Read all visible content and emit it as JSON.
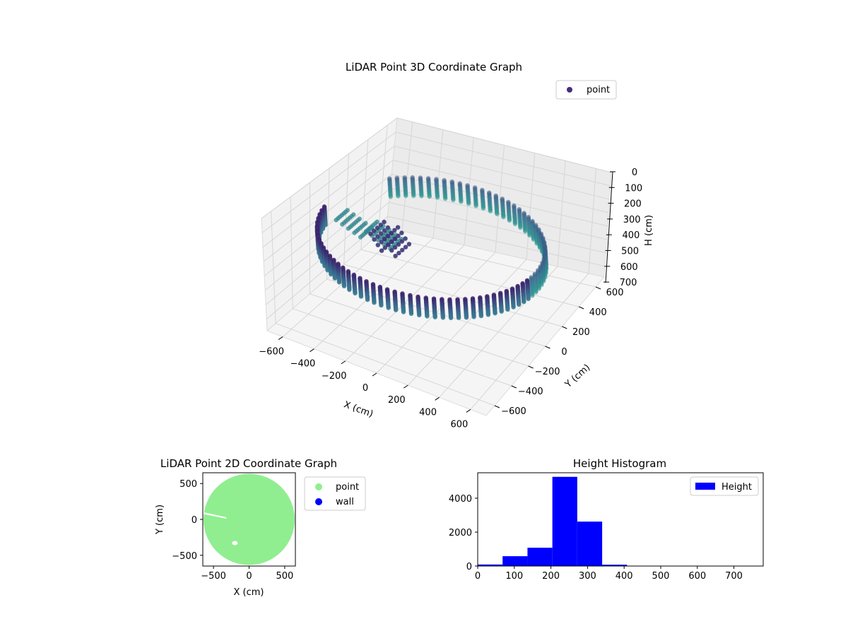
{
  "chart_data": [
    {
      "type": "scatter3d",
      "title": "LiDAR Point 3D Coordinate Graph",
      "xlabel": "X (cm)",
      "ylabel": "Y (cm)",
      "zlabel": "H (cm)",
      "xlim": [
        -700,
        700
      ],
      "ylim": [
        -700,
        700
      ],
      "zlim": [
        0,
        780
      ],
      "z_inverted": true,
      "x_ticks": [
        -600,
        -400,
        -200,
        0,
        200,
        400,
        600
      ],
      "y_ticks": [
        -600,
        -400,
        -200,
        0,
        200,
        400,
        600
      ],
      "z_ticks": [
        0,
        100,
        200,
        300,
        400,
        500,
        600,
        700
      ],
      "legend": {
        "position": "top-right",
        "entries": [
          {
            "label": "point",
            "color": "#472d7b"
          }
        ]
      },
      "colormap": {
        "low": "#3b1f6b",
        "mid": "#3b6f8f",
        "high": "#2a9a8f"
      },
      "wall": {
        "radius_cm": 640,
        "h_top": 200,
        "h_bottom": 330,
        "gap_deg_from": 140,
        "gap_deg_to": 185
      },
      "grid": true
    },
    {
      "type": "scatter",
      "title": "LiDAR Point 2D Coordinate Graph",
      "xlabel": "X (cm)",
      "ylabel": "Y (cm)",
      "xlim": [
        -650,
        650
      ],
      "ylim": [
        -650,
        650
      ],
      "x_ticks": [
        -500,
        0,
        500
      ],
      "y_ticks": [
        500,
        0,
        -500
      ],
      "legend": {
        "position": "outside-right",
        "entries": [
          {
            "label": "point",
            "color": "#90ee90"
          },
          {
            "label": "wall",
            "color": "#0000ff"
          }
        ]
      },
      "disc_radius_cm": 640,
      "holes": [
        {
          "shape": "sliver",
          "x_from": -640,
          "x_to": -320,
          "y_from": 100,
          "y_to": 30
        },
        {
          "shape": "blob",
          "x": -200,
          "y": -330
        }
      ]
    },
    {
      "type": "histogram",
      "title": "Height Histogram",
      "series_name": "Height",
      "color": "#0000ff",
      "xlim": [
        0,
        780
      ],
      "ylim": [
        0,
        5500
      ],
      "x_ticks": [
        0,
        100,
        200,
        300,
        400,
        500,
        600,
        700
      ],
      "y_ticks": [
        0,
        2000,
        4000
      ],
      "legend": {
        "position": "top-right"
      },
      "bin_edges": [
        0,
        68,
        136,
        204,
        272,
        340,
        408,
        476,
        544,
        612,
        680,
        748
      ],
      "counts": [
        90,
        580,
        1080,
        5260,
        2620,
        80,
        10,
        5,
        5,
        5,
        5
      ]
    }
  ]
}
